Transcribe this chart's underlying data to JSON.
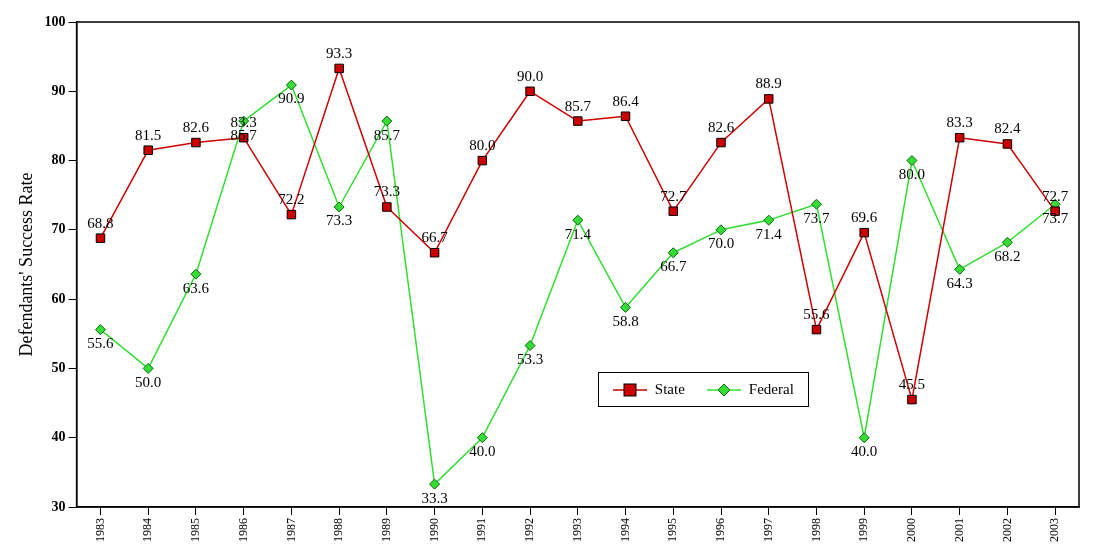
{
  "chart_data": {
    "type": "line",
    "ylabel": "Defendants' Success Rate",
    "categories": [
      "1983",
      "1984",
      "1985",
      "1986",
      "1987",
      "1988",
      "1989",
      "1990",
      "1991",
      "1992",
      "1993",
      "1994",
      "1995",
      "1996",
      "1997",
      "1998",
      "1999",
      "2000",
      "2001",
      "2002",
      "2003"
    ],
    "series": [
      {
        "name": "State",
        "color": "#cc0000",
        "marker": "square",
        "values": [
          68.8,
          81.5,
          82.6,
          83.3,
          72.2,
          93.3,
          73.3,
          66.7,
          80.0,
          90.0,
          85.7,
          86.4,
          72.7,
          82.6,
          88.9,
          55.6,
          69.6,
          45.5,
          83.3,
          82.4,
          72.7
        ],
        "value_labels": [
          "68.8",
          "81.5",
          "82.6",
          "83.3",
          "72.2",
          "93.3",
          "73.3",
          "66.7",
          "80.0",
          "90.0",
          "85.7",
          "86.4",
          "72.7",
          "82.6",
          "88.9",
          "55.6",
          "69.6",
          "45.5",
          "83.3",
          "82.4",
          "72.7"
        ]
      },
      {
        "name": "Federal",
        "color": "#33dd33",
        "marker": "diamond",
        "values": [
          55.6,
          50.0,
          63.6,
          85.7,
          90.9,
          73.3,
          85.7,
          33.3,
          40.0,
          53.3,
          71.4,
          58.8,
          66.7,
          70.0,
          71.4,
          73.7,
          40.0,
          80.0,
          64.3,
          68.2,
          73.7
        ],
        "value_labels": [
          "55.6",
          "50.0",
          "63.6",
          "85.7",
          "90.9",
          "73.3",
          "85.7",
          "33.3",
          "40.0",
          "53.3",
          "71.4",
          "58.8",
          "66.7",
          "70.0",
          "71.4",
          "73.7",
          "40.0",
          "80.0",
          "64.3",
          "68.2",
          "73.7"
        ]
      }
    ],
    "ylim": [
      30,
      100
    ],
    "yticks": [
      30,
      40,
      50,
      60,
      70,
      80,
      90,
      100
    ],
    "grid": false,
    "legend": "bottom"
  }
}
